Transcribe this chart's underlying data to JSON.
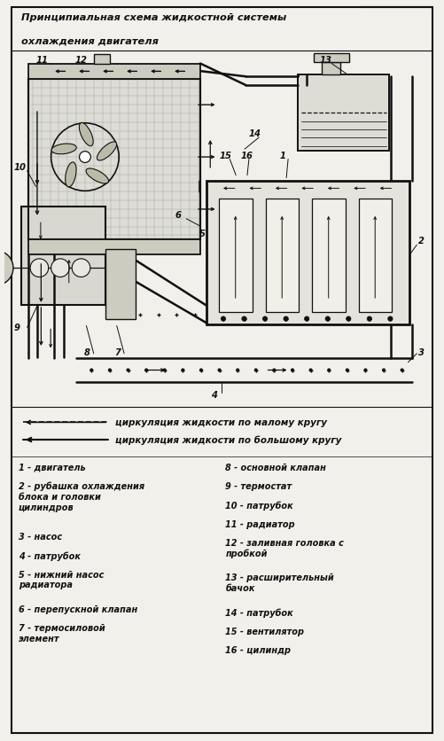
{
  "title_line1": "Принципиальная схема жидкостной системы",
  "title_line2": "охлаждения двигателя",
  "bg_color": "#f2f0eb",
  "legend1_text": "циркуляция жидкости по малому кругу",
  "legend2_text": "циркуляция жидкости по большому кругу",
  "left_items": [
    [
      "1 - ",
      "двигатель"
    ],
    [
      "2 - ",
      "рубашка охлаждения\nблока и головки\nцилиндров"
    ],
    [
      "3 - ",
      "насос"
    ],
    [
      "4 - ",
      "патрубок"
    ],
    [
      "5 - ",
      "нижний насос\nрадиатора"
    ],
    [
      "6 - ",
      "перепускной клапан"
    ],
    [
      "7 - ",
      "термосиловой\nэлемент"
    ]
  ],
  "right_items": [
    [
      "8 - ",
      "основной клапан"
    ],
    [
      "9 - ",
      "термостат"
    ],
    [
      "10 - ",
      "патрубок"
    ],
    [
      "11 - ",
      "радиатор"
    ],
    [
      "12 - ",
      "заливная головка с\nпробкой"
    ],
    [
      "13 - ",
      "расширительный\nбачок"
    ],
    [
      "14 - ",
      "патрубок"
    ],
    [
      "15 - ",
      "вентилятор"
    ],
    [
      "16 - ",
      "цилиндр"
    ]
  ],
  "figsize": [
    5.01,
    8.37
  ],
  "dpi": 100
}
